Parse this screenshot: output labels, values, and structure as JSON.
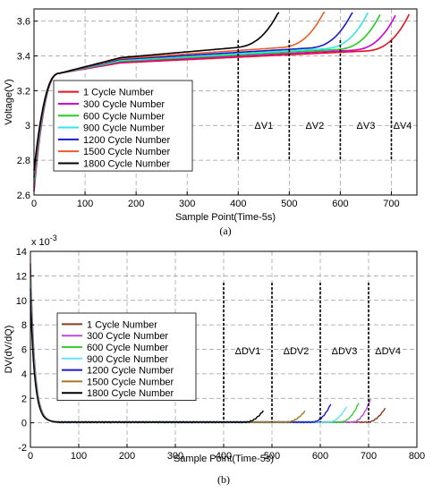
{
  "chart_data": [
    {
      "id": "a",
      "type": "line",
      "caption": "(a)",
      "xlabel": "Sample Point(Time-5s)",
      "ylabel": "Voltage(V)",
      "xlim": [
        0,
        750
      ],
      "ylim": [
        2.6,
        3.67
      ],
      "xticks": [
        0,
        100,
        200,
        300,
        400,
        500,
        600,
        700
      ],
      "yticks": [
        2.6,
        2.8,
        3,
        3.2,
        3.4,
        3.6
      ],
      "ytick_labels": [
        "2.6",
        "2.8",
        "3",
        "3.2",
        "3.4",
        "3.6"
      ],
      "grid": true,
      "legend_position": "center-left",
      "markers": [
        {
          "x": 400,
          "label": "ΔV1",
          "label_x": 450
        },
        {
          "x": 500,
          "label": "ΔV2",
          "label_x": 550
        },
        {
          "x": 600,
          "label": "ΔV3",
          "label_x": 650
        },
        {
          "x": 700,
          "label": "ΔV4",
          "label_x": 722
        }
      ],
      "series": [
        {
          "name": "1 Cycle Number",
          "color": "#e8111b",
          "end": 735,
          "flat_y": 3.36
        },
        {
          "name": "300 Cycle Number",
          "color": "#d100d1",
          "end": 710,
          "flat_y": 3.365
        },
        {
          "name": "600 Cycle Number",
          "color": "#22cc22",
          "end": 680,
          "flat_y": 3.37
        },
        {
          "name": "900 Cycle Number",
          "color": "#33e6e6",
          "end": 655,
          "flat_y": 3.375
        },
        {
          "name": "1200 Cycle Number",
          "color": "#1a1acc",
          "end": 625,
          "flat_y": 3.38
        },
        {
          "name": "1500 Cycle Number",
          "color": "#f05a28",
          "end": 570,
          "flat_y": 3.385
        },
        {
          "name": "1800 Cycle Number",
          "color": "#000000",
          "end": 482,
          "flat_y": 3.39
        }
      ]
    },
    {
      "id": "b",
      "type": "line",
      "caption": "(b)",
      "xlabel": "Sample Point(Time-5s)",
      "ylabel": "DV(dV/dQ)",
      "exponent_label": "x 10",
      "exponent_power": "-3",
      "xlim": [
        0,
        800
      ],
      "ylim": [
        -2,
        14
      ],
      "xticks": [
        0,
        100,
        200,
        300,
        400,
        500,
        600,
        700,
        800
      ],
      "yticks": [
        -2,
        0,
        2,
        4,
        6,
        8,
        10,
        12,
        14
      ],
      "grid": true,
      "legend_position": "center-left",
      "markers": [
        {
          "x": 400,
          "label": "ΔDV1",
          "label_x": 450
        },
        {
          "x": 500,
          "label": "ΔDV2",
          "label_x": 550
        },
        {
          "x": 600,
          "label": "ΔDV3",
          "label_x": 650
        },
        {
          "x": 700,
          "label": "ΔDV4",
          "label_x": 740
        }
      ],
      "series": [
        {
          "name": "1 Cycle Number",
          "color": "#8b3a1a",
          "end": 735,
          "peak": 1.2
        },
        {
          "name": "300 Cycle Number",
          "color": "#b84de0",
          "end": 705,
          "peak": 2.0
        },
        {
          "name": "600 Cycle Number",
          "color": "#3ccc3c",
          "end": 680,
          "peak": 1.6
        },
        {
          "name": "900 Cycle Number",
          "color": "#66e0ff",
          "end": 655,
          "peak": 1.3
        },
        {
          "name": "1200 Cycle Number",
          "color": "#1a1acc",
          "end": 622,
          "peak": 1.5
        },
        {
          "name": "1500 Cycle Number",
          "color": "#a07a20",
          "end": 568,
          "peak": 0.9
        },
        {
          "name": "1800 Cycle Number",
          "color": "#000000",
          "end": 483,
          "peak": 1.0
        }
      ]
    }
  ]
}
